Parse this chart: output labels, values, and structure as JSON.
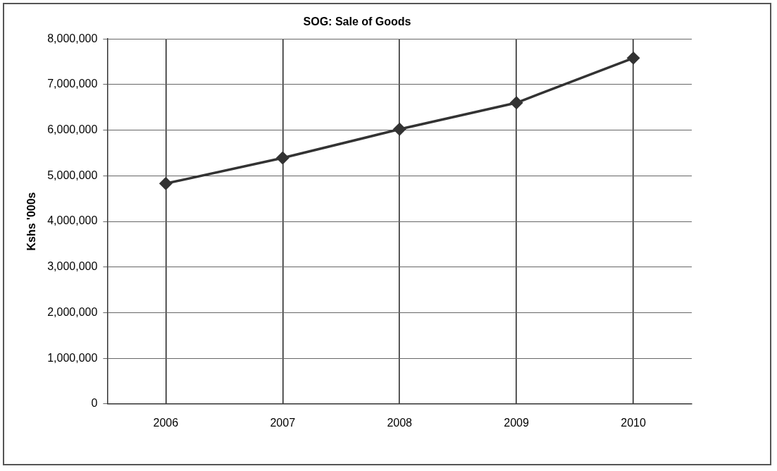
{
  "chart_data": {
    "type": "line",
    "title": "SOG: Sale of Goods",
    "ylabel": "Kshs '000s",
    "categories": [
      "2006",
      "2007",
      "2008",
      "2009",
      "2010"
    ],
    "series": [
      {
        "color": "#333333",
        "values": [
          4830000,
          5390000,
          6020000,
          6600000,
          7580000
        ]
      }
    ],
    "ylim": [
      0,
      8000000
    ],
    "yticks": [
      {
        "value": 0,
        "label": "0"
      },
      {
        "value": 1000000,
        "label": "1,000,000"
      },
      {
        "value": 2000000,
        "label": "2,000,000"
      },
      {
        "value": 3000000,
        "label": "3,000,000"
      },
      {
        "value": 4000000,
        "label": "4,000,000"
      },
      {
        "value": 5000000,
        "label": "5,000,000"
      },
      {
        "value": 6000000,
        "label": "6,000,000"
      },
      {
        "value": 7000000,
        "label": "7,000,000"
      },
      {
        "value": 8000000,
        "label": "8,000,000"
      }
    ],
    "grid": true,
    "legend": false,
    "marker": "diamond",
    "line_style": "solid"
  }
}
